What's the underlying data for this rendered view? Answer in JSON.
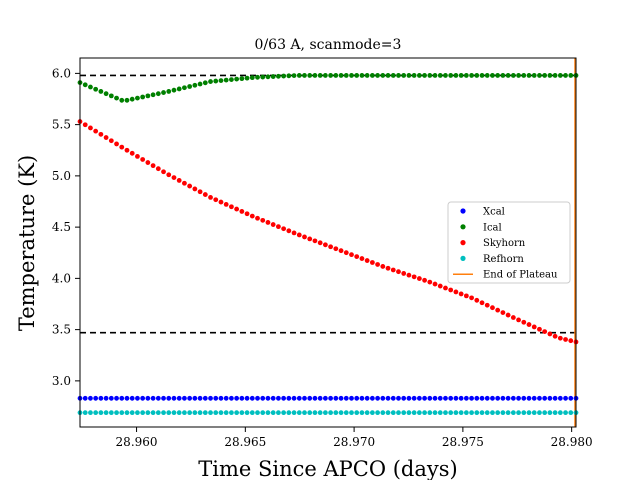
{
  "chart_data": {
    "type": "scatter",
    "title": "0/63 A, scanmode=3",
    "xlabel": "Time Since APCO (days)",
    "ylabel": "Temperature (K)",
    "xlim": [
      28.9574,
      28.9802
    ],
    "ylim": [
      2.55,
      6.15
    ],
    "x_ticks": [
      28.96,
      28.965,
      28.97,
      28.975,
      28.98
    ],
    "x_tick_labels": [
      "28.960",
      "28.965",
      "28.970",
      "28.975",
      "28.980"
    ],
    "y_ticks": [
      3.0,
      3.5,
      4.0,
      4.5,
      5.0,
      5.5,
      6.0
    ],
    "y_tick_labels": [
      "3.0",
      "3.5",
      "4.0",
      "4.5",
      "5.0",
      "5.5",
      "6.0"
    ],
    "grid": false,
    "legend_position": "center-right",
    "x": [
      28.9574,
      28.9594,
      28.9614,
      28.9634,
      28.9654,
      28.9674,
      28.9694,
      28.9714,
      28.9734,
      28.9754,
      28.9774,
      28.9794,
      28.9802
    ],
    "series": [
      {
        "name": "Xcal",
        "color": "#0000ff",
        "marker": "dot",
        "values": [
          2.83,
          2.83,
          2.83,
          2.83,
          2.83,
          2.83,
          2.83,
          2.83,
          2.83,
          2.83,
          2.83,
          2.83,
          2.83
        ]
      },
      {
        "name": "Ical",
        "color": "#008000",
        "marker": "dot",
        "values": [
          5.91,
          5.73,
          5.82,
          5.92,
          5.96,
          5.98,
          5.98,
          5.98,
          5.98,
          5.98,
          5.98,
          5.98,
          5.98
        ]
      },
      {
        "name": "Skyhorn",
        "color": "#ff0000",
        "marker": "dot",
        "values": [
          5.53,
          5.27,
          5.02,
          4.79,
          4.6,
          4.43,
          4.27,
          4.11,
          3.97,
          3.81,
          3.61,
          3.42,
          3.38
        ]
      },
      {
        "name": "Refhorn",
        "color": "#00bfbf",
        "marker": "dot",
        "values": [
          2.69,
          2.69,
          2.69,
          2.69,
          2.69,
          2.69,
          2.69,
          2.69,
          2.69,
          2.69,
          2.69,
          2.69,
          2.69
        ]
      },
      {
        "name": "End of Plateau",
        "color": "#ff7f0e",
        "marker": "line",
        "values": []
      }
    ],
    "reference_lines": [
      {
        "y": 5.98,
        "style": "dashed",
        "color": "#000000"
      },
      {
        "y": 3.47,
        "style": "dashed",
        "color": "#000000"
      }
    ],
    "vertical_line": {
      "x": 28.9802,
      "color": "#ff7f0e"
    }
  }
}
